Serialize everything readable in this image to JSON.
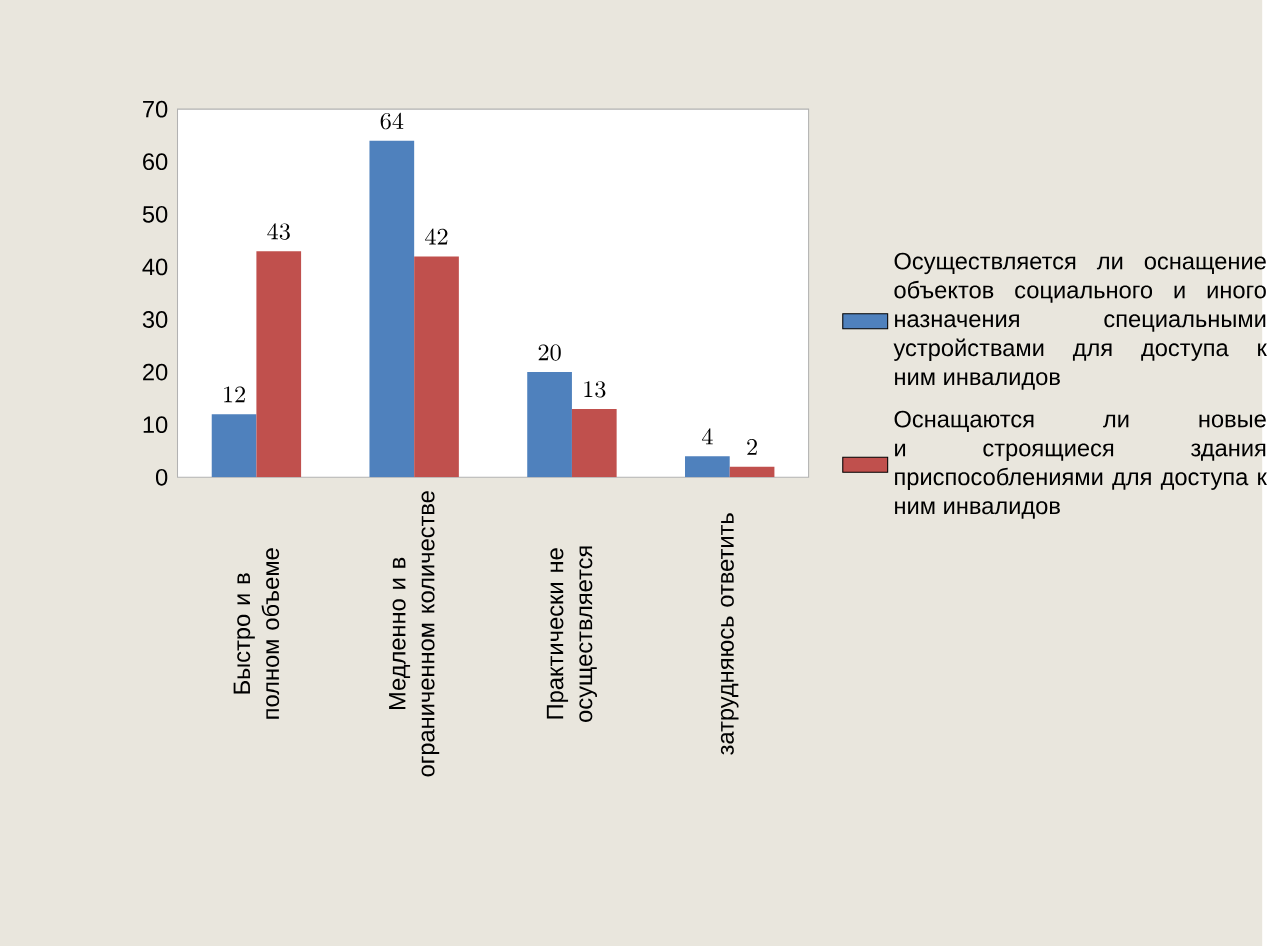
{
  "chart_data": {
    "type": "bar",
    "categories": [
      "Быстро и в полном объеме",
      "Медленно и в ограниченном количестве",
      "Практически не осуществляется",
      "затрудняюсь ответить"
    ],
    "series": [
      {
        "name": "Осуществляется ли оснащение объектов социального и иного назначения специальными устройствами для доступа к ним инвалидов",
        "color": "#4f81bd",
        "values": [
          12,
          64,
          20,
          4
        ]
      },
      {
        "name": "Оснащаются ли новые и строящиеся здания приспособлениями для доступа к ним инвалидов",
        "color": "#c0504d",
        "values": [
          43,
          42,
          13,
          2
        ]
      }
    ],
    "ylim": [
      0,
      70
    ],
    "yticks": [
      0,
      10,
      20,
      30,
      40,
      50,
      60,
      70
    ],
    "data_labels": true,
    "legend": "right"
  }
}
